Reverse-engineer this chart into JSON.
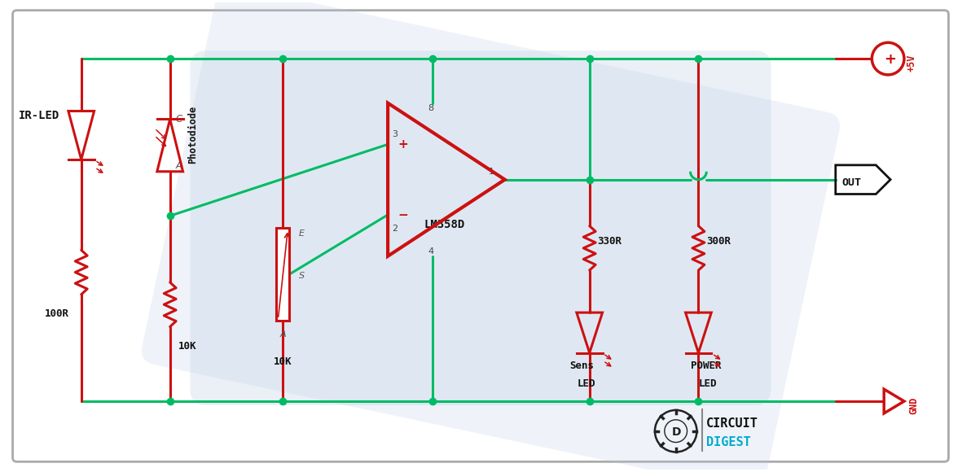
{
  "wire_color": "#00bb66",
  "red_color": "#cc1111",
  "black_color": "#111111",
  "gray_color": "#888888",
  "pcb_color": "#b8cce4",
  "wire_lw": 2.2,
  "comp_lw": 2.2,
  "dot_size": 6,
  "fig_w": 11.81,
  "fig_h": 5.8,
  "xlim": [
    0,
    118.1
  ],
  "ylim": [
    0,
    58.0
  ]
}
